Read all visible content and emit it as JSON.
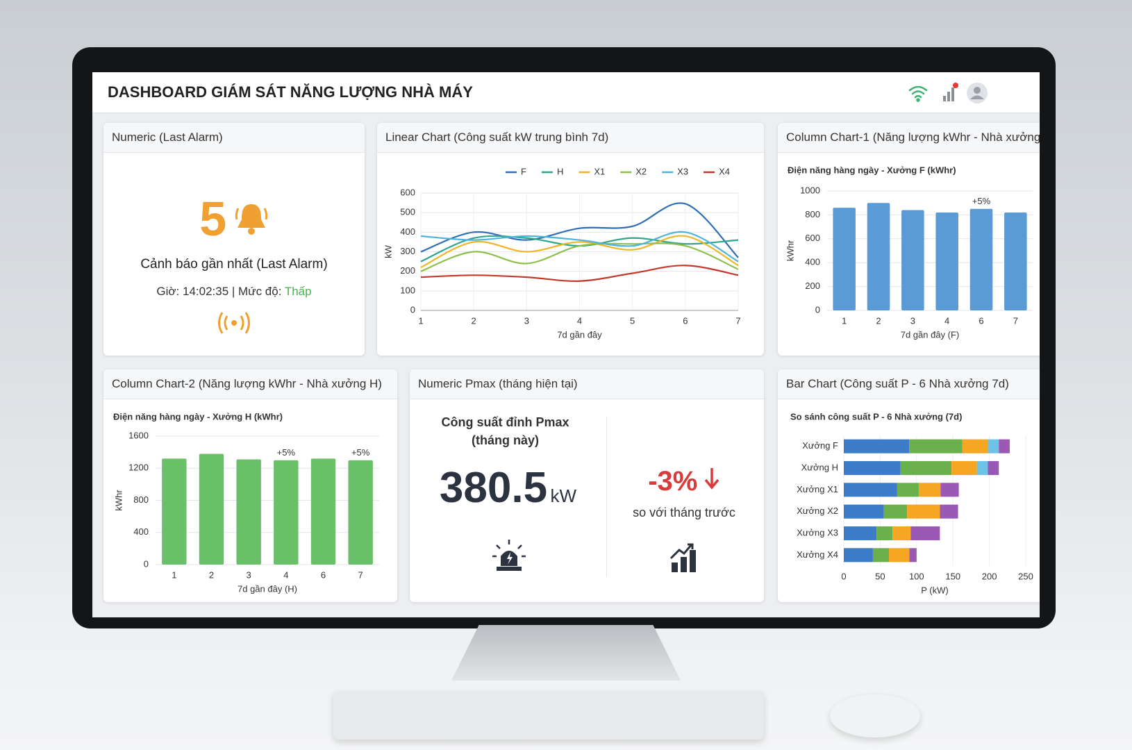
{
  "header": {
    "title": "DASHBOARD GIÁM SÁT NĂNG LƯỢNG NHÀ MÁY"
  },
  "widgets": {
    "alarm": {
      "panel_title": "Numeric (Last Alarm)",
      "value": 5,
      "label": "Cảnh báo gần nhất (Last Alarm)",
      "time": "Giờ: 14:02:35 | Mức độ:",
      "level": "Thấp"
    },
    "pmax": {
      "panel_title": "Numeric Pmax (tháng hiện tại)",
      "label": "Công suất đỉnh Pmax (tháng này)",
      "value": 380.5,
      "unit": "kW",
      "change": "-3%",
      "change_label": "so với tháng trước"
    }
  },
  "chart_data": [
    {
      "type": "line",
      "panel_title": "Linear Chart (Công suất kW trung bình 7d)",
      "x": [
        1,
        2,
        3,
        4,
        5,
        6,
        7
      ],
      "xlim": [
        1,
        7
      ],
      "xticks": [
        1,
        2,
        3,
        4,
        5,
        6,
        7
      ],
      "ylim": [
        0,
        600
      ],
      "yticks": [
        0,
        100,
        200,
        300,
        400,
        500,
        600
      ],
      "xlabel": "7d gần đây",
      "ylabel": "kW",
      "grid": true,
      "series": [
        {
          "name": "F",
          "color": "#2f6db5",
          "values": [
            300,
            400,
            360,
            420,
            430,
            545,
            270
          ]
        },
        {
          "name": "H",
          "color": "#2fa58c",
          "values": [
            250,
            370,
            370,
            330,
            370,
            340,
            360
          ]
        },
        {
          "name": "X1",
          "color": "#f0b429",
          "values": [
            220,
            350,
            300,
            350,
            310,
            380,
            230
          ]
        },
        {
          "name": "X2",
          "color": "#8cc04b",
          "values": [
            200,
            300,
            240,
            330,
            340,
            330,
            210
          ]
        },
        {
          "name": "X3",
          "color": "#4fb3d9",
          "values": [
            380,
            360,
            380,
            360,
            330,
            400,
            250
          ]
        },
        {
          "name": "X4",
          "color": "#c0392b",
          "values": [
            170,
            180,
            170,
            150,
            190,
            230,
            180
          ]
        }
      ]
    },
    {
      "type": "column",
      "panel_title": "Column Chart-1 (Năng lượng kWhr - Nhà xưởng F)",
      "title": "Điện năng hàng ngày - Xưởng F (kWhr)",
      "categories": [
        "1",
        "2",
        "3",
        "4",
        "6",
        "7"
      ],
      "values": [
        860,
        900,
        840,
        820,
        850,
        820
      ],
      "color": "#5b9bd5",
      "ylim": [
        0,
        1000
      ],
      "yticks": [
        0,
        200,
        400,
        600,
        800,
        1000
      ],
      "xlabel": "7d gần đây (F)",
      "ylabel": "kWhr",
      "grid": true,
      "annotations": [
        {
          "category": "6",
          "text": "+5%"
        }
      ],
      "annotation_color": "#3b78c2"
    },
    {
      "type": "column",
      "panel_title": "Column Chart-2 (Năng lượng kWhr - Nhà xưởng H)",
      "title": "Điện năng hàng ngày - Xưởng H (kWhr)",
      "categories": [
        "1",
        "2",
        "3",
        "4",
        "6",
        "7"
      ],
      "values": [
        1320,
        1380,
        1310,
        1300,
        1320,
        1300
      ],
      "color": "#6abf69",
      "ylim": [
        0,
        1600
      ],
      "yticks": [
        0,
        400,
        800,
        1200,
        1600
      ],
      "xlabel": "7d gần đây (H)",
      "ylabel": "kWhr",
      "grid": true,
      "annotations": [
        {
          "category": "4",
          "text": "+5%"
        },
        {
          "category": "7",
          "text": "+5%"
        }
      ],
      "annotation_color": "#4caf50"
    },
    {
      "type": "stacked-bar",
      "panel_title": "Bar Chart (Công suất P - 6 Nhà xưởng 7d)",
      "title": "So sánh công suất P - 6 Nhà xưởng (7d)",
      "categories": [
        "Xưởng F",
        "Xưởng H",
        "Xưởng X1",
        "Xưởng X2",
        "Xưởng X3",
        "Xưởng X4"
      ],
      "xlim": [
        0,
        250
      ],
      "xticks": [
        0,
        50,
        100,
        150,
        200,
        250
      ],
      "xlabel": "P (kW)",
      "grid": true,
      "series": [
        {
          "color": "#3d7cc9",
          "values": [
            90,
            78,
            73,
            55,
            45,
            40
          ]
        },
        {
          "color": "#6ab04c",
          "values": [
            73,
            70,
            30,
            32,
            22,
            22
          ]
        },
        {
          "color": "#f5a623",
          "values": [
            35,
            35,
            30,
            45,
            25,
            28
          ]
        },
        {
          "color": "#6cc3e8",
          "values": [
            15,
            15,
            0,
            0,
            0,
            0
          ]
        },
        {
          "color": "#9b59b6",
          "values": [
            15,
            15,
            25,
            25,
            40,
            10
          ]
        }
      ]
    }
  ]
}
